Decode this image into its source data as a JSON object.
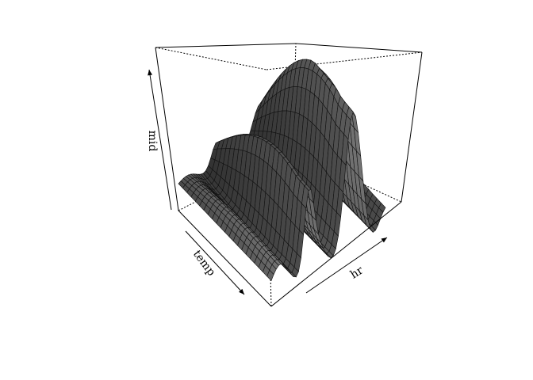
{
  "chart_data": {
    "type": "surface",
    "title": "",
    "xlabel": "temp",
    "ylabel": "hr",
    "zlabel": "mid",
    "shading": "#555555",
    "edge_color": "#111111",
    "background": "#ffffff"
  }
}
